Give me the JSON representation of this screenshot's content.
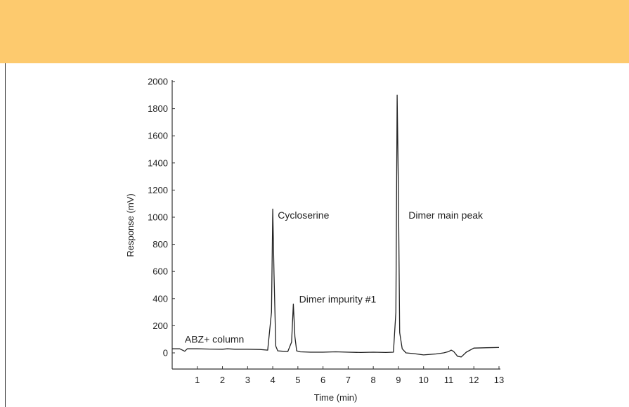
{
  "colors": {
    "banner": "#fdca6e",
    "trace": "#222222",
    "axis": "#333333"
  },
  "chart_data": {
    "type": "line",
    "title": "",
    "xlabel": "Time (min)",
    "ylabel": "Response (mV)",
    "xlim": [
      0,
      13
    ],
    "ylim": [
      -100,
      2000
    ],
    "xticks": [
      1,
      2,
      3,
      4,
      5,
      6,
      7,
      8,
      9,
      10,
      11,
      12,
      13
    ],
    "yticks": [
      0,
      200,
      400,
      600,
      800,
      1000,
      1200,
      1400,
      1600,
      1800,
      2000
    ],
    "grid": false,
    "series": [
      {
        "x": [
          0,
          0.3,
          0.5,
          0.6,
          1.0,
          1.5,
          2.0,
          2.2,
          2.5,
          3.0,
          3.5,
          3.8,
          3.95,
          4.0,
          4.05,
          4.12,
          4.2,
          4.4,
          4.6,
          4.75,
          4.82,
          4.88,
          4.95,
          5.1,
          5.5,
          6.0,
          6.5,
          7.0,
          7.5,
          8.0,
          8.5,
          8.8,
          8.9,
          8.95,
          9.0,
          9.05,
          9.15,
          9.3,
          9.6,
          10.0,
          10.5,
          10.8,
          11.0,
          11.1,
          11.2,
          11.35,
          11.5,
          11.7,
          12.0,
          12.5,
          13.0
        ],
        "y": [
          30,
          30,
          12,
          30,
          30,
          28,
          27,
          30,
          27,
          27,
          25,
          20,
          300,
          1060,
          580,
          50,
          15,
          12,
          10,
          80,
          360,
          120,
          15,
          8,
          5,
          5,
          8,
          5,
          3,
          5,
          3,
          5,
          300,
          1900,
          1200,
          150,
          30,
          0,
          -5,
          -15,
          -8,
          0,
          10,
          20,
          10,
          -25,
          -30,
          5,
          35,
          38,
          40
        ]
      }
    ],
    "annotations": [
      {
        "text": "ABZ+ column",
        "x": 0.5,
        "y": 75
      },
      {
        "text": "Cycloserine",
        "x": 4.2,
        "y": 990
      },
      {
        "text": "Dimer impurity #1",
        "x": 5.05,
        "y": 370
      },
      {
        "text": "Dimer main peak",
        "x": 9.4,
        "y": 990
      }
    ]
  }
}
